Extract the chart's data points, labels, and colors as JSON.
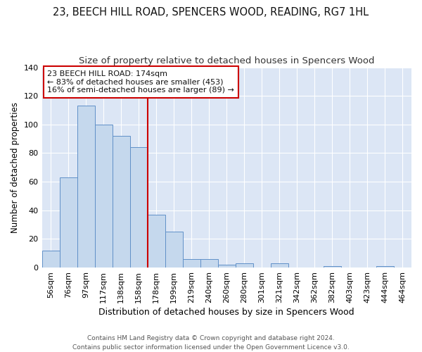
{
  "title": "23, BEECH HILL ROAD, SPENCERS WOOD, READING, RG7 1HL",
  "subtitle": "Size of property relative to detached houses in Spencers Wood",
  "xlabel": "Distribution of detached houses by size in Spencers Wood",
  "ylabel": "Number of detached properties",
  "bins": [
    "56sqm",
    "76sqm",
    "97sqm",
    "117sqm",
    "138sqm",
    "158sqm",
    "178sqm",
    "199sqm",
    "219sqm",
    "240sqm",
    "260sqm",
    "280sqm",
    "301sqm",
    "321sqm",
    "342sqm",
    "362sqm",
    "382sqm",
    "403sqm",
    "423sqm",
    "444sqm",
    "464sqm"
  ],
  "values": [
    12,
    63,
    113,
    100,
    92,
    84,
    37,
    25,
    6,
    6,
    2,
    3,
    0,
    3,
    0,
    0,
    1,
    0,
    0,
    1,
    0
  ],
  "bar_color": "#c5d8ed",
  "bar_edge_color": "#6090c8",
  "vline_color": "#cc0000",
  "annotation_text": "23 BEECH HILL ROAD: 174sqm\n← 83% of detached houses are smaller (453)\n16% of semi-detached houses are larger (89) →",
  "annotation_box_facecolor": "#ffffff",
  "annotation_box_edgecolor": "#cc0000",
  "ylim": [
    0,
    140
  ],
  "yticks": [
    0,
    20,
    40,
    60,
    80,
    100,
    120,
    140
  ],
  "plot_bg_color": "#dce6f5",
  "grid_color": "#ffffff",
  "title_fontsize": 10.5,
  "subtitle_fontsize": 9.5,
  "xlabel_fontsize": 9,
  "ylabel_fontsize": 8.5,
  "tick_fontsize": 8,
  "annotation_fontsize": 8,
  "footer_fontsize": 6.5,
  "footer": "Contains HM Land Registry data © Crown copyright and database right 2024.\nContains public sector information licensed under the Open Government Licence v3.0."
}
